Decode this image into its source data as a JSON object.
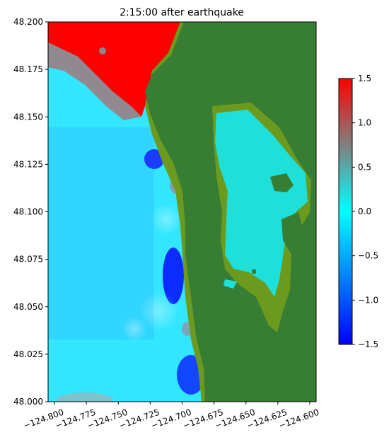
{
  "chart_data": {
    "type": "heatmap",
    "title": "2:15:00 after earthquake",
    "xlabel": "",
    "ylabel": "",
    "xlim": [
      -124.805,
      -124.595
    ],
    "ylim": [
      48.0,
      48.2
    ],
    "x_ticks": [
      -124.8,
      -124.775,
      -124.75,
      -124.725,
      -124.7,
      -124.675,
      -124.65,
      -124.625,
      -124.6
    ],
    "x_tick_labels": [
      "−124.800",
      "−124.775",
      "−124.750",
      "−124.725",
      "−124.700",
      "−124.675",
      "−124.650",
      "−124.625",
      "−124.600"
    ],
    "y_ticks": [
      48.0,
      48.025,
      48.05,
      48.075,
      48.1,
      48.125,
      48.15,
      48.175,
      48.2
    ],
    "y_tick_labels": [
      "48.000",
      "48.025",
      "48.050",
      "48.075",
      "48.100",
      "48.125",
      "48.150",
      "48.175",
      "48.200"
    ],
    "colorbar": {
      "range": [
        -1.5,
        1.5
      ],
      "ticks": [
        -1.5,
        -1.0,
        -0.5,
        0.0,
        0.5,
        1.0,
        1.5
      ],
      "tick_labels": [
        "−1.5",
        "−1.0",
        "−0.5",
        "0.0",
        "0.5",
        "1.0",
        "1.5"
      ],
      "colors": [
        "#0000ff",
        "#00ffff",
        "#808080",
        "#ff0000"
      ]
    },
    "colors": {
      "land": "#377d34",
      "shore_fringe": "#6b9a1f",
      "inland_water": "#1ee0d8",
      "open_water_mid": "#48d8ff",
      "positive_high": "#ff0000",
      "negative_low": "#0000ff"
    },
    "grid": false
  }
}
